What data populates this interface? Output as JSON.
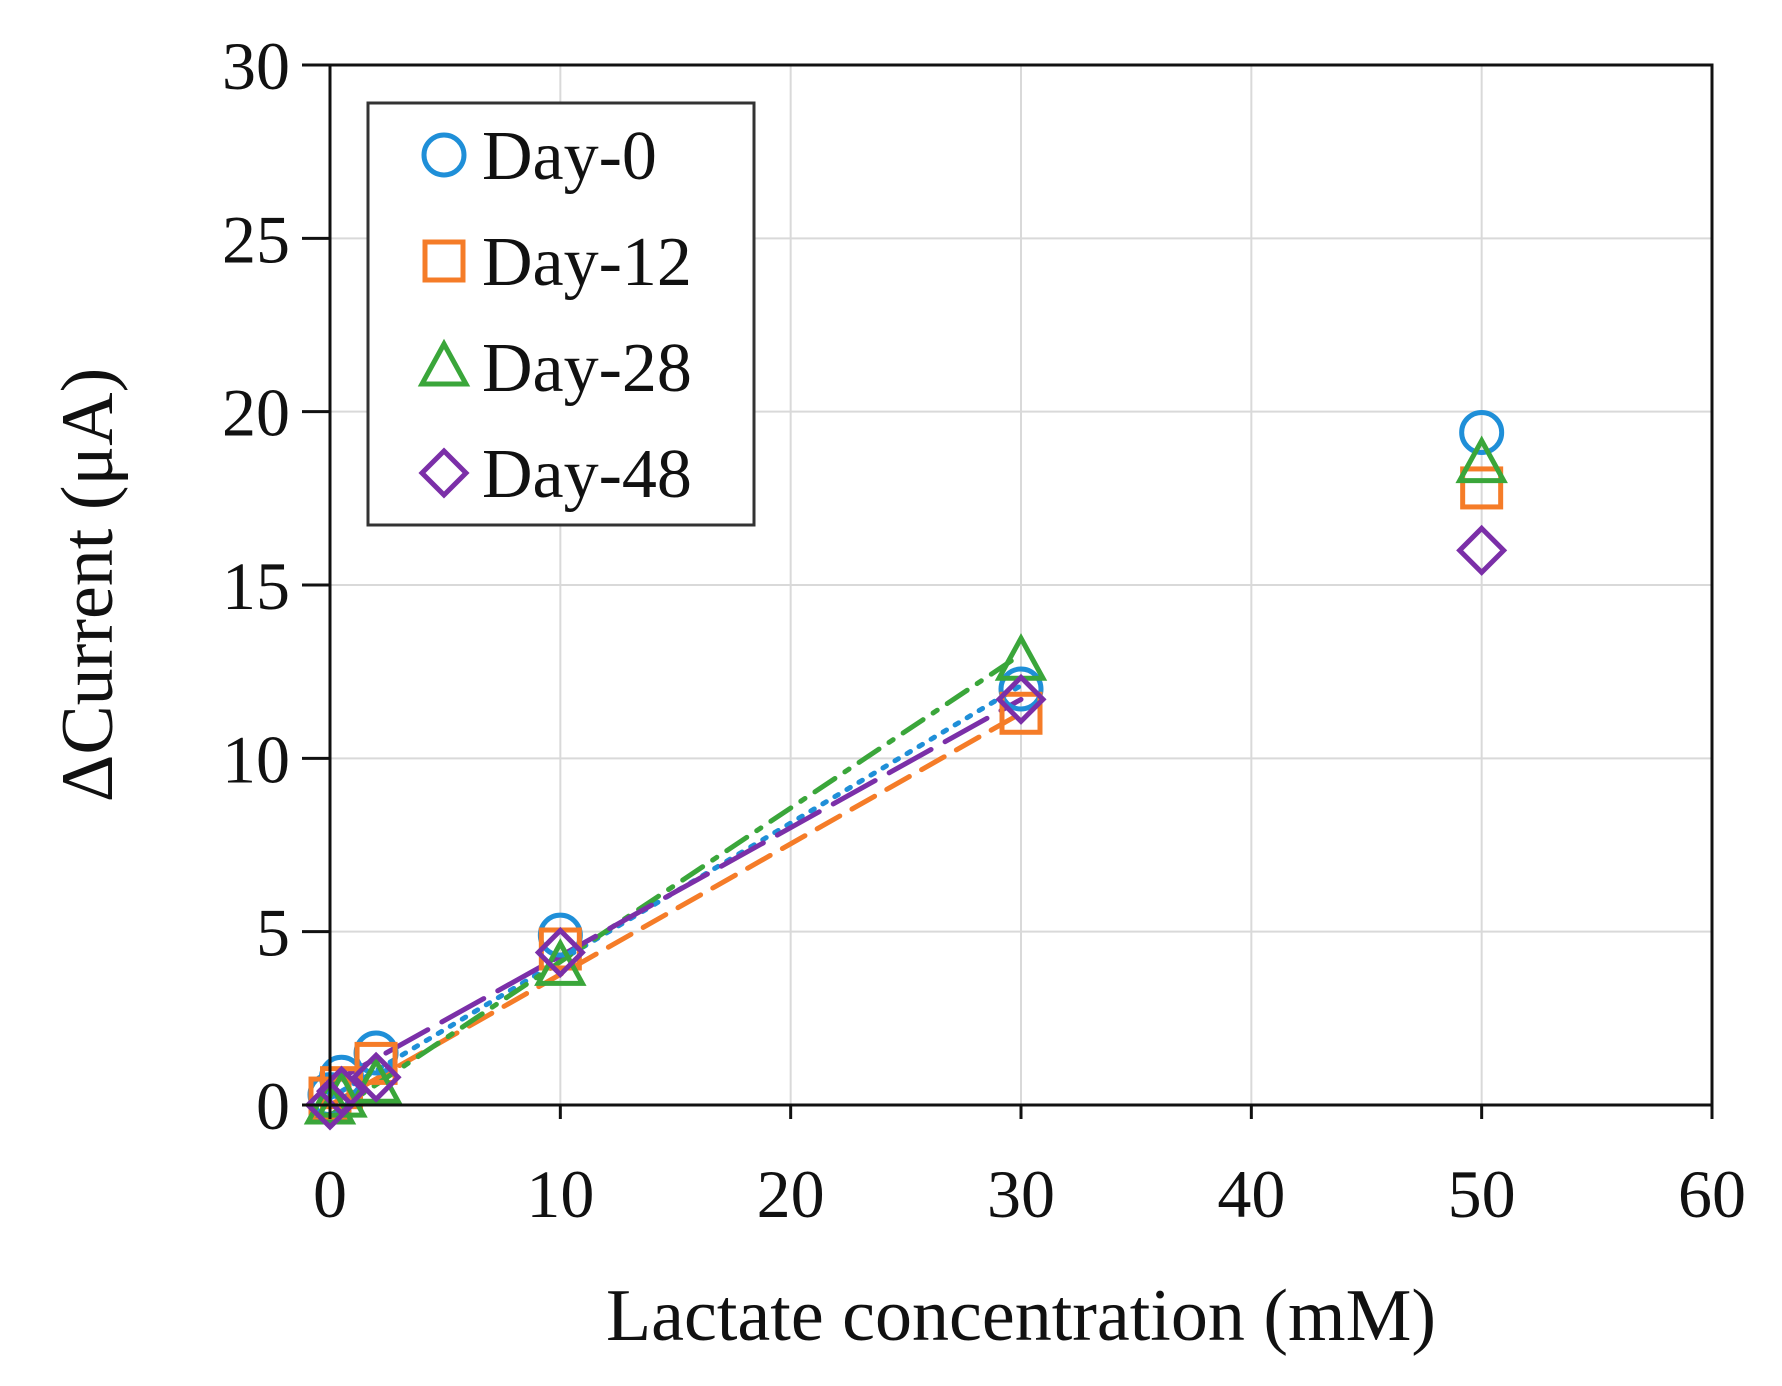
{
  "chart_data": {
    "type": "scatter",
    "title": "",
    "xlabel": "Lactate concentration (mM)",
    "ylabel": "ΔCurrent (μA)",
    "xlim": [
      0,
      60
    ],
    "ylim": [
      0,
      30
    ],
    "xticks": [
      "0",
      "10",
      "20",
      "30",
      "40",
      "50",
      "60"
    ],
    "yticks": [
      "0",
      "5",
      "10",
      "15",
      "20",
      "25",
      "30"
    ],
    "grid": true,
    "legend_position": "top-left",
    "series": [
      {
        "name": "Day-0",
        "marker": "circle",
        "color": "#1f8fd8",
        "x": [
          0,
          0.5,
          2,
          10,
          30,
          50
        ],
        "y": [
          0.3,
          0.8,
          1.5,
          4.9,
          12.0,
          19.4
        ],
        "fit": {
          "style": "dotted",
          "x": [
            0,
            30
          ],
          "y": [
            0.2,
            12.1
          ]
        }
      },
      {
        "name": "Day-12",
        "marker": "square",
        "color": "#f57c28",
        "x": [
          0,
          0.5,
          2,
          10,
          30,
          50
        ],
        "y": [
          0.2,
          0.5,
          1.2,
          4.5,
          11.3,
          17.8
        ],
        "fit": {
          "style": "dashed",
          "x": [
            0,
            30
          ],
          "y": [
            0.0,
            11.3
          ]
        }
      },
      {
        "name": "Day-28",
        "marker": "triangle",
        "color": "#3aa63a",
        "x": [
          0,
          0.5,
          2,
          10,
          30,
          50
        ],
        "y": [
          0.0,
          0.2,
          0.6,
          4.0,
          12.8,
          18.5
        ],
        "fit": {
          "style": "dashdot",
          "x": [
            0,
            30
          ],
          "y": [
            -0.3,
            13.0
          ]
        }
      },
      {
        "name": "Day-48",
        "marker": "diamond",
        "color": "#7b2fa8",
        "x": [
          0,
          0.5,
          2,
          10,
          30,
          50
        ],
        "y": [
          0.0,
          0.4,
          0.8,
          4.4,
          11.7,
          16.0
        ],
        "fit": {
          "style": "longdash",
          "x": [
            0,
            30
          ],
          "y": [
            0.6,
            11.7
          ]
        }
      }
    ]
  }
}
